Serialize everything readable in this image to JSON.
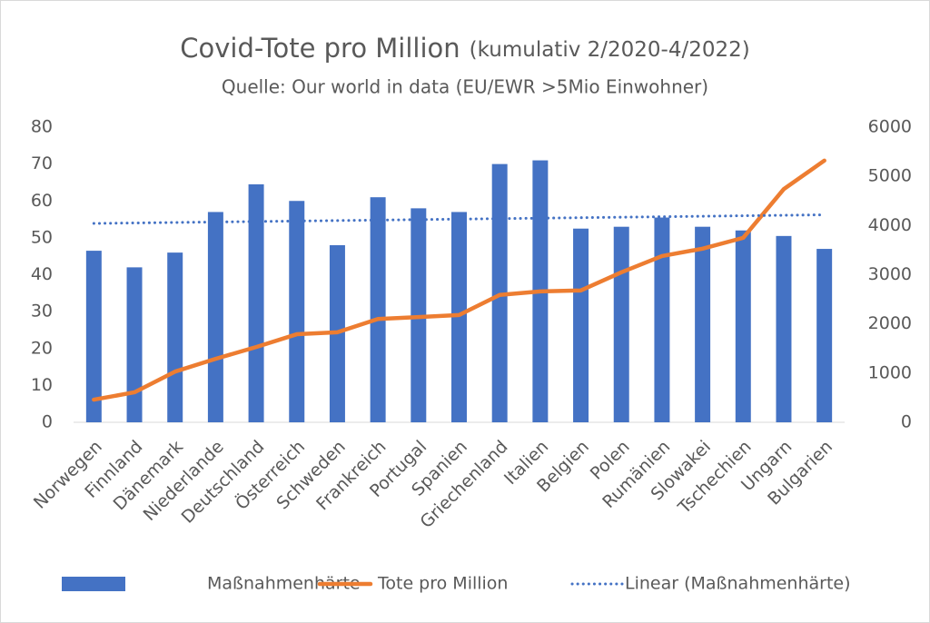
{
  "chart_data": {
    "type": "combo",
    "title": "Covid-Tote pro Million",
    "title_note": "(kumulativ 2/2020-4/2022)",
    "subtitle": "Quelle: Our world in data (EU/EWR >5Mio Einwohner)",
    "categories": [
      "Norwegen",
      "Finnland",
      "Dänemark",
      "Niederlande",
      "Deutschland",
      "Österreich",
      "Schweden",
      "Frankreich",
      "Portugal",
      "Spanien",
      "Griechenland",
      "Italien",
      "Belgien",
      "Polen",
      "Rumänien",
      "Slowakei",
      "Tschechien",
      "Ungarn",
      "Bulgarien"
    ],
    "series": [
      {
        "name": "Maßnahmenhärte",
        "type": "bar",
        "color": "#4472c4",
        "values": [
          46.5,
          42,
          46,
          57,
          64.5,
          60,
          48,
          61,
          58,
          57,
          70,
          71,
          52.5,
          53,
          55.5,
          53,
          52,
          50.5,
          47
        ]
      },
      {
        "name": "Tote pro Million",
        "type": "line",
        "axis": "y2",
        "color": "#ed7d31",
        "values": [
          460,
          610,
          1030,
          1290,
          1530,
          1790,
          1830,
          2100,
          2140,
          2180,
          2590,
          2660,
          2680,
          3050,
          3380,
          3530,
          3750,
          4740,
          5320
        ]
      },
      {
        "name": "Linear (Maßnahmenhärte)",
        "type": "line",
        "dash": "dotted",
        "color": "#4472c4",
        "values": [
          53.9,
          54.03,
          54.16,
          54.29,
          54.42,
          54.55,
          54.68,
          54.81,
          54.94,
          55.07,
          55.2,
          55.33,
          55.46,
          55.59,
          55.72,
          55.85,
          55.98,
          56.11,
          56.24
        ]
      }
    ],
    "ylim": [
      0,
      80
    ],
    "yticks": [
      0,
      10,
      20,
      30,
      40,
      50,
      60,
      70,
      80
    ],
    "y2lim": [
      0,
      6000
    ],
    "y2ticks": [
      0,
      1000,
      2000,
      3000,
      4000,
      5000,
      6000
    ],
    "grid": false,
    "legend": "bottom"
  }
}
